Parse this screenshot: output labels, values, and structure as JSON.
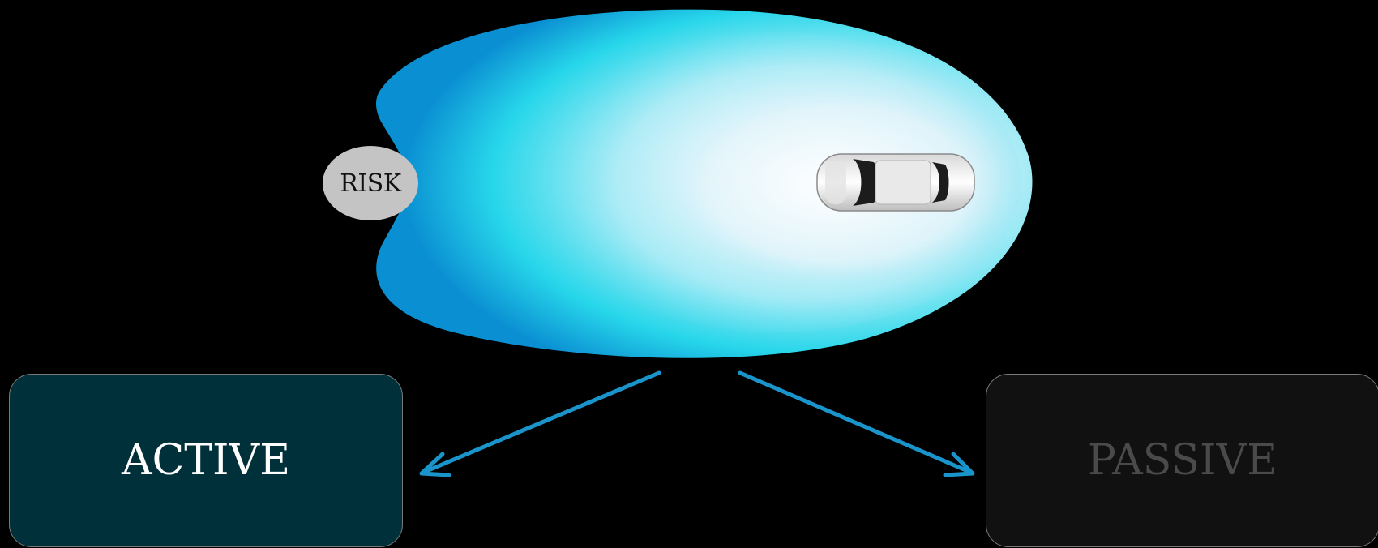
{
  "diagram": {
    "risk_label": "RISK",
    "active_label": "ACTIVE",
    "passive_label": "PASSIVE",
    "colors": {
      "background": "#000000",
      "field_outer": "#0a9fdc",
      "field_mid": "#26e4ef",
      "field_inner": "#e9f6fb",
      "arrow": "#1a95cc",
      "risk_bubble": "#c4c4c4",
      "active_box": "#00313b",
      "passive_box": "#111111",
      "passive_text": "#4a4a4a"
    },
    "icons": {
      "car": "car-top-view-icon",
      "sensor_field": "sensor-field-icon"
    }
  }
}
